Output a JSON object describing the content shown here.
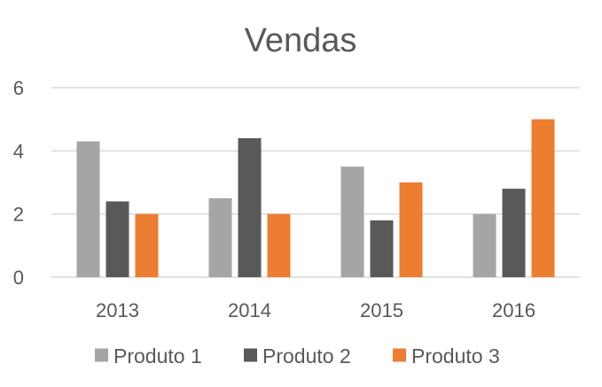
{
  "chart_data": {
    "type": "bar",
    "title": "Vendas",
    "categories": [
      "2013",
      "2014",
      "2015",
      "2016"
    ],
    "series": [
      {
        "name": "Produto 1",
        "color": "#A5A5A5",
        "values": [
          4.3,
          2.5,
          3.5,
          2.0
        ]
      },
      {
        "name": "Produto 2",
        "color": "#595959",
        "values": [
          2.4,
          4.4,
          1.8,
          2.8
        ]
      },
      {
        "name": "Produto 3",
        "color": "#ED7D31",
        "values": [
          2.0,
          2.0,
          3.0,
          5.0
        ]
      }
    ],
    "ylim": [
      0,
      6
    ],
    "yticks": [
      "0",
      "2",
      "4",
      "6"
    ],
    "grid": true,
    "gridline_color": "#D9D9D9",
    "legend_position": "bottom"
  }
}
